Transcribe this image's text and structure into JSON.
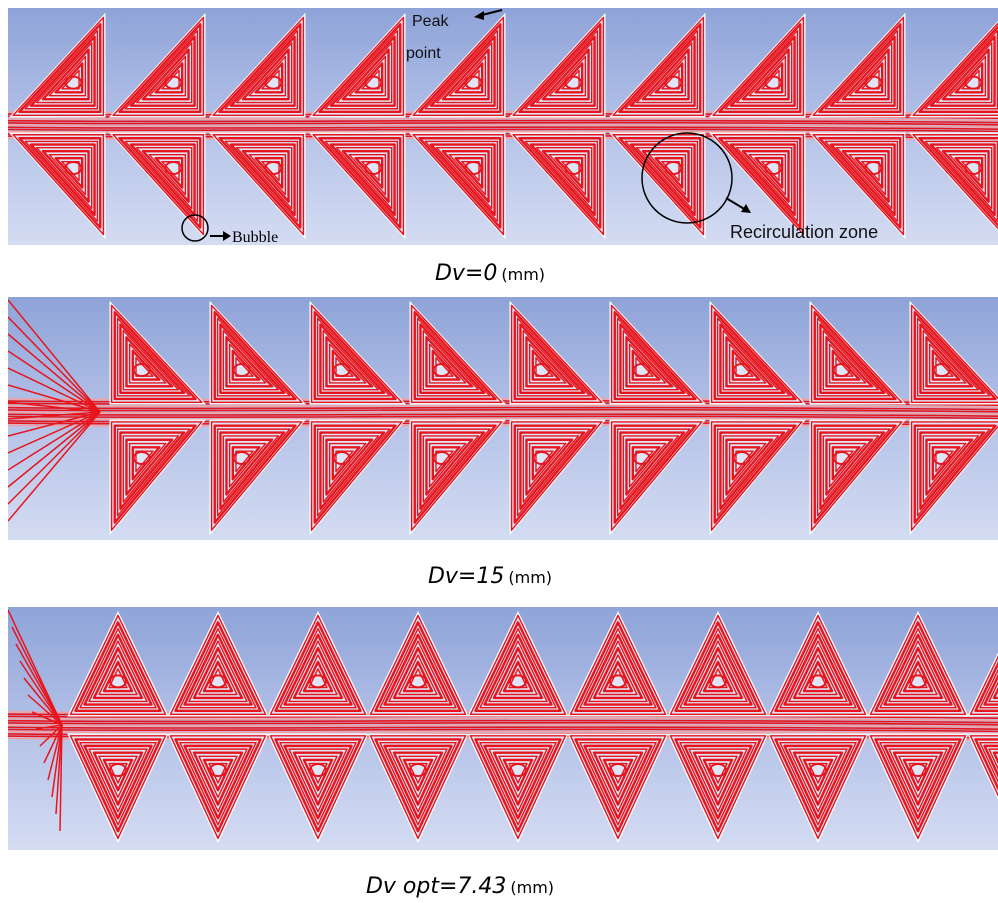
{
  "annotations": {
    "peak_line1": "Peak",
    "peak_line2": "point",
    "bubble": "Bubble",
    "recirculation": "Recirculation zone"
  },
  "captions": [
    {
      "label": "Dv=0",
      "unit": "(mm)"
    },
    {
      "label": "Dv=15",
      "unit": "(mm)"
    },
    {
      "label": "Dv opt=7.43",
      "unit": "(mm)"
    }
  ]
}
